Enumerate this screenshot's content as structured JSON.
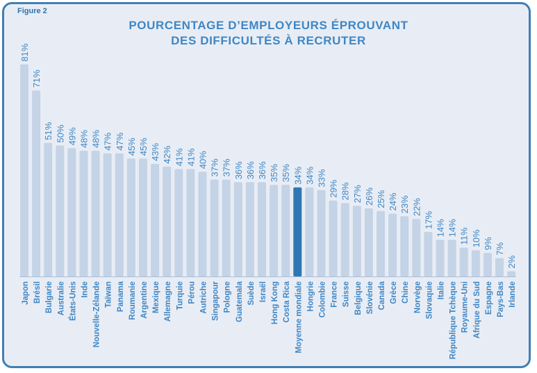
{
  "figure_label": "Figure 2",
  "chart_data": {
    "type": "bar",
    "title_line1": "POURCENTAGE D’EMPLOYEURS ÉPROUVANT",
    "title_line2": "DES DIFFICULTÉS À RECRUTER",
    "xlabel": "",
    "ylabel": "",
    "ylim": [
      0,
      100
    ],
    "grid": false,
    "highlight_category": "Moyenne mondiale",
    "colors": {
      "bar": "#c5d3e6",
      "highlight": "#2f77b2",
      "text": "#3f86c4"
    },
    "categories": [
      "Japon",
      "Brésil",
      "Bulgarie",
      "Australie",
      "États-Unis",
      "Inde",
      "Nouvelle-Zélande",
      "Taïwan",
      "Panama",
      "Roumanie",
      "Argentine",
      "Mexique",
      "Allemagne",
      "Turquie",
      "Pérou",
      "Autriche",
      "Singapour",
      "Pologne",
      "Guatemala",
      "Suède",
      "Israël",
      "Hong Kong",
      "Costa Rica",
      "Moyenne mondiale",
      "Hongrie",
      "Colombie",
      "France",
      "Suisse",
      "Belgique",
      "Slovénie",
      "Canada",
      "Grèce",
      "Chine",
      "Norvège",
      "Slovaquie",
      "Italie",
      "République Tchèque",
      "Royaume-Uni",
      "Afrique du Sud",
      "Espagne",
      "Pays-Bas",
      "Irlande"
    ],
    "values": [
      81,
      71,
      51,
      50,
      49,
      48,
      48,
      47,
      47,
      45,
      45,
      43,
      42,
      41,
      41,
      40,
      37,
      37,
      36,
      36,
      36,
      35,
      35,
      34,
      34,
      33,
      29,
      28,
      27,
      26,
      25,
      24,
      23,
      22,
      17,
      14,
      14,
      11,
      10,
      9,
      7,
      2
    ],
    "value_labels": [
      "81%",
      "71%",
      "51%",
      "50%",
      "49%",
      "48%",
      "48%",
      "47%",
      "47%",
      "45%",
      "45%",
      "43%",
      "42%",
      "41%",
      "41%",
      "40%",
      "37%",
      "37%",
      "36%",
      "36%",
      "36%",
      "35%",
      "35%",
      "34%",
      "34%",
      "33%",
      "29%",
      "28%",
      "27%",
      "26%",
      "25%",
      "24%",
      "23%",
      "22%",
      "17%",
      "14%",
      "14%",
      "11%",
      "10%",
      "9%",
      "7%",
      "2%"
    ]
  }
}
